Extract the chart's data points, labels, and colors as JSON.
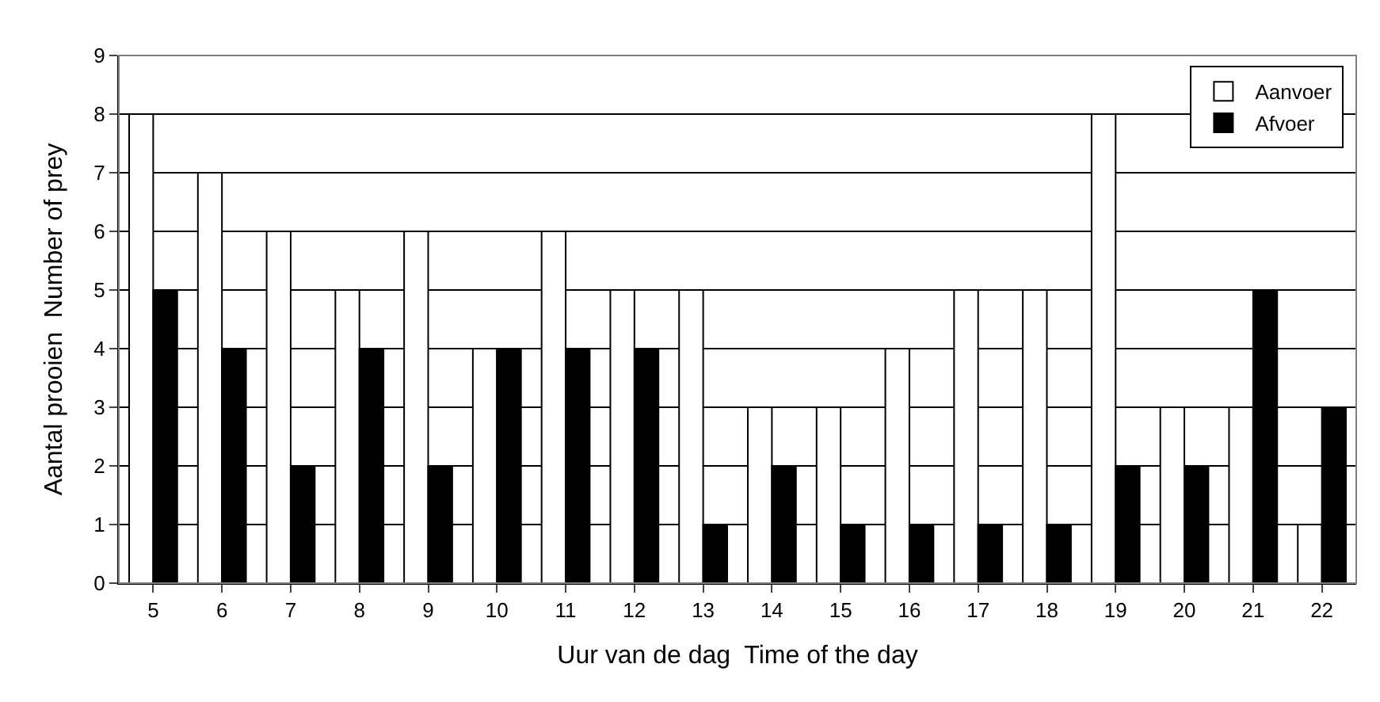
{
  "chart_data": {
    "type": "bar",
    "xlabel": "Uur van de dag  Time of the day",
    "ylabel": "Aantal prooien  Number of prey",
    "categories": [
      "5",
      "6",
      "7",
      "8",
      "9",
      "10",
      "11",
      "12",
      "13",
      "14",
      "15",
      "16",
      "17",
      "18",
      "19",
      "20",
      "21",
      "22"
    ],
    "series": [
      {
        "name": "Aanvoer",
        "color": "#ffffff",
        "values": [
          8,
          7,
          6,
          5,
          6,
          4,
          6,
          5,
          5,
          3,
          3,
          4,
          5,
          5,
          8,
          3,
          3,
          1
        ]
      },
      {
        "name": "Afvoer",
        "color": "#000000",
        "values": [
          5,
          4,
          2,
          4,
          2,
          4,
          4,
          4,
          1,
          2,
          1,
          1,
          1,
          1,
          2,
          2,
          5,
          3
        ]
      }
    ],
    "ylim": [
      0,
      9
    ],
    "yticks": [
      0,
      1,
      2,
      3,
      4,
      5,
      6,
      7,
      8,
      9
    ],
    "grid": "y",
    "legend": "top right"
  }
}
